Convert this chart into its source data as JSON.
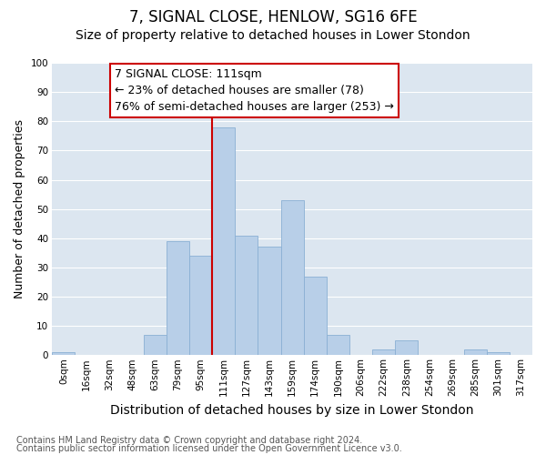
{
  "title": "7, SIGNAL CLOSE, HENLOW, SG16 6FE",
  "subtitle": "Size of property relative to detached houses in Lower Stondon",
  "xlabel": "Distribution of detached houses by size in Lower Stondon",
  "ylabel": "Number of detached properties",
  "bin_labels": [
    "0sqm",
    "16sqm",
    "32sqm",
    "48sqm",
    "63sqm",
    "79sqm",
    "95sqm",
    "111sqm",
    "127sqm",
    "143sqm",
    "159sqm",
    "174sqm",
    "190sqm",
    "206sqm",
    "222sqm",
    "238sqm",
    "254sqm",
    "269sqm",
    "285sqm",
    "301sqm",
    "317sqm"
  ],
  "bar_heights": [
    1,
    0,
    0,
    0,
    7,
    39,
    34,
    78,
    41,
    37,
    53,
    27,
    7,
    0,
    2,
    5,
    0,
    0,
    2,
    1,
    0
  ],
  "bar_color": "#b8cfe8",
  "bar_edge_color": "#8aafd4",
  "vline_x": 7,
  "vline_color": "#cc0000",
  "ylim": [
    0,
    100
  ],
  "yticks": [
    0,
    10,
    20,
    30,
    40,
    50,
    60,
    70,
    80,
    90,
    100
  ],
  "annotation_title": "7 SIGNAL CLOSE: 111sqm",
  "annotation_line1": "← 23% of detached houses are smaller (78)",
  "annotation_line2": "76% of semi-detached houses are larger (253) →",
  "annotation_box_color": "#ffffff",
  "annotation_box_edge": "#cc0000",
  "footnote1": "Contains HM Land Registry data © Crown copyright and database right 2024.",
  "footnote2": "Contains public sector information licensed under the Open Government Licence v3.0.",
  "title_fontsize": 12,
  "subtitle_fontsize": 10,
  "xlabel_fontsize": 10,
  "ylabel_fontsize": 9,
  "tick_fontsize": 7.5,
  "annotation_fontsize": 9,
  "footnote_fontsize": 7,
  "bg_color": "#dce6f0"
}
